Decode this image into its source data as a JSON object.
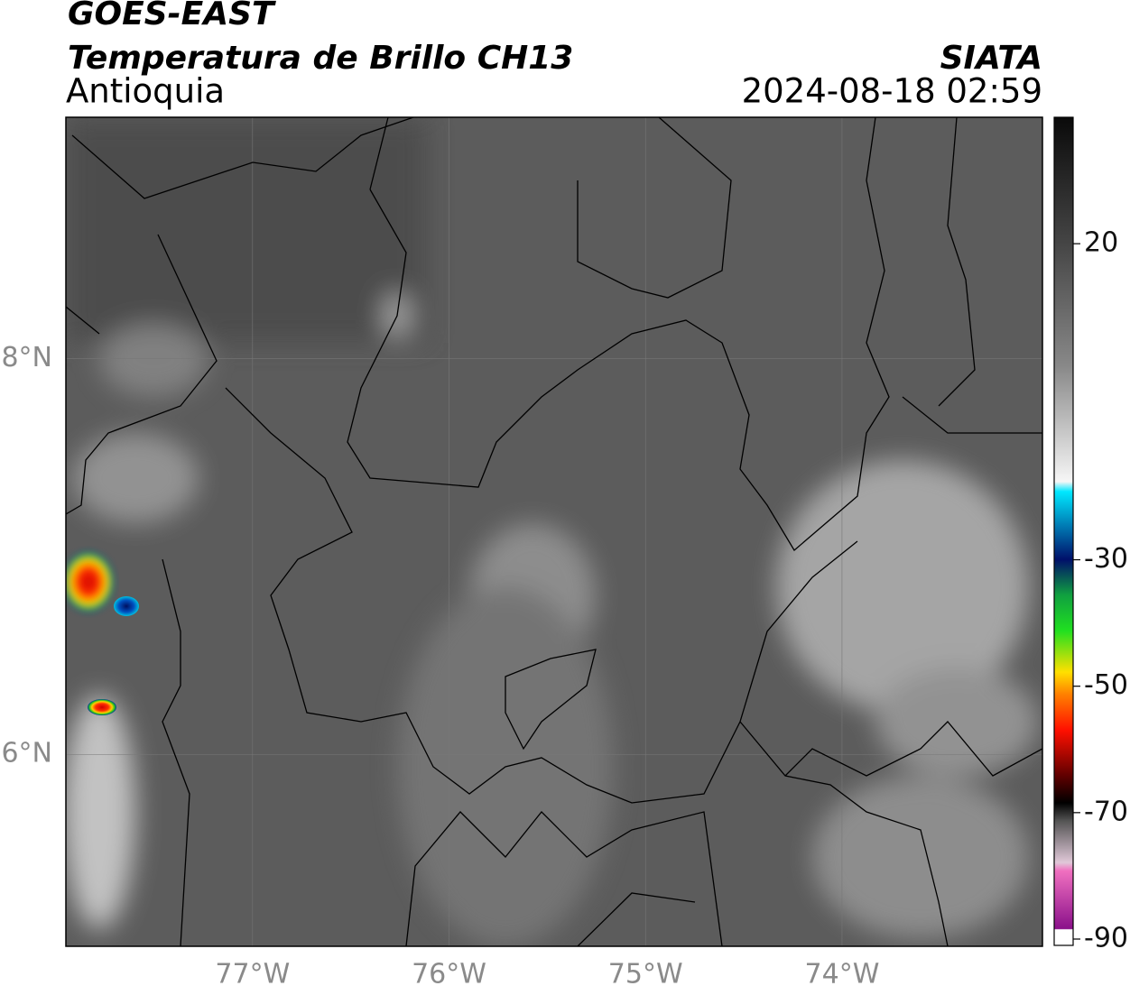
{
  "chart_data": {
    "type": "map",
    "title": "GOES-EAST",
    "subtitle": "Temperatura de Brillo CH13",
    "region": "Antioquia",
    "source": "SIATA",
    "timestamp": "2024-08-18 02:59",
    "xlim": [
      -77.95,
      -72.98
    ],
    "ylim": [
      5.03,
      9.22
    ],
    "xticks": [
      {
        "value": -77,
        "label": "77°W"
      },
      {
        "value": -76,
        "label": "76°W"
      },
      {
        "value": -75,
        "label": "75°W"
      },
      {
        "value": -74,
        "label": "74°W"
      }
    ],
    "yticks": [
      {
        "value": 8,
        "label": "8°N"
      },
      {
        "value": 6,
        "label": "6°N"
      }
    ],
    "grid": true,
    "colorbar": {
      "lim": [
        -91,
        40
      ],
      "ticks": [
        20,
        -30,
        -50,
        -70,
        -90
      ]
    }
  }
}
